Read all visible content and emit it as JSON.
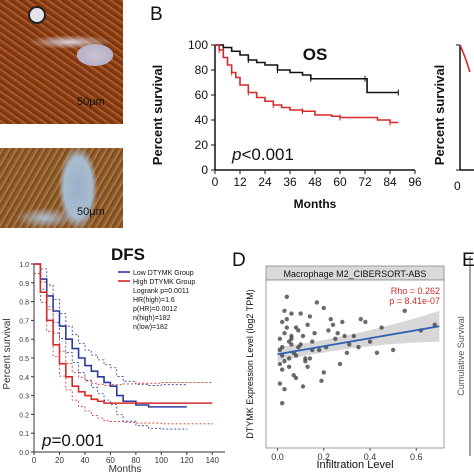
{
  "images": {
    "scale_a": "50μm",
    "scale_b": "50μm"
  },
  "labels": {
    "B": "B",
    "D": "D",
    "E": "E"
  },
  "chart_data": [
    {
      "type": "line",
      "title": "OS",
      "xlabel": "Months",
      "ylabel": "Percent survival",
      "xlim": [
        0,
        96
      ],
      "ylim": [
        0,
        100
      ],
      "xticks": [
        "0",
        "12",
        "24",
        "36",
        "48",
        "60",
        "72",
        "84",
        "96"
      ],
      "yticks": [
        "0",
        "20",
        "40",
        "60",
        "80",
        "100"
      ],
      "annotation_p": "p",
      "annotation_val": "<0.001",
      "series": [
        {
          "color": "#111111",
          "x": [
            0,
            4,
            8,
            12,
            16,
            20,
            24,
            30,
            36,
            42,
            46,
            50,
            60,
            72,
            73,
            84,
            88
          ],
          "y": [
            100,
            98,
            95,
            92,
            88,
            86,
            84,
            80,
            78,
            76,
            73,
            73,
            73,
            73,
            62,
            62,
            62
          ]
        },
        {
          "color": "#d42a2a",
          "x": [
            0,
            2,
            4,
            6,
            8,
            10,
            12,
            16,
            20,
            24,
            28,
            32,
            36,
            42,
            48,
            56,
            60,
            72,
            78,
            84,
            88
          ],
          "y": [
            100,
            96,
            90,
            84,
            78,
            74,
            68,
            62,
            58,
            55,
            52,
            50,
            48,
            47,
            44,
            43,
            42,
            42,
            40,
            38,
            38
          ]
        }
      ]
    },
    {
      "type": "line",
      "title": "DFS",
      "xlabel": "Months",
      "ylabel": "Percent survival",
      "xlim": [
        0,
        150
      ],
      "ylim": [
        0,
        1
      ],
      "xticks": [
        "0",
        "20",
        "40",
        "60",
        "80",
        "100",
        "120",
        "140"
      ],
      "yticks": [
        "0.0",
        "0.1",
        "0.2",
        "0.3",
        "0.4",
        "0.5",
        "0.6",
        "0.7",
        "0.8",
        "0.9",
        "1.0"
      ],
      "annotation_p": "p",
      "annotation_val": "=0.001",
      "legend": [
        "Low DTYMK Group",
        "High DTYMK Group"
      ],
      "stats": [
        "Logrank p=0.0011",
        "HR(high)=1.6",
        "p(HR)=0.0012",
        "n(high)=182",
        "n(low)=182"
      ],
      "series": [
        {
          "name": "Low DTYMK Group",
          "color": "#2b3b9c",
          "x": [
            0,
            5,
            10,
            15,
            20,
            25,
            30,
            35,
            40,
            45,
            50,
            55,
            60,
            65,
            70,
            80,
            90,
            100,
            120
          ],
          "y": [
            1.0,
            0.92,
            0.83,
            0.75,
            0.67,
            0.6,
            0.55,
            0.5,
            0.46,
            0.43,
            0.4,
            0.37,
            0.35,
            0.3,
            0.27,
            0.25,
            0.24,
            0.24,
            0.24
          ]
        },
        {
          "name": "High DTYMK Group",
          "color": "#d42a2a",
          "x": [
            0,
            5,
            10,
            15,
            20,
            25,
            30,
            35,
            40,
            45,
            50,
            55,
            60,
            70,
            80,
            100,
            140
          ],
          "y": [
            1.0,
            0.85,
            0.7,
            0.57,
            0.47,
            0.4,
            0.35,
            0.32,
            0.3,
            0.28,
            0.27,
            0.26,
            0.26,
            0.26,
            0.26,
            0.26,
            0.26
          ]
        }
      ]
    },
    {
      "type": "scatter",
      "title": "Macrophage M2_CIBERSORT-ABS",
      "xlabel": "Infiltration Level",
      "ylabel": "DTYMK Expression Level (log2 TPM)",
      "xlim": [
        -0.05,
        0.72
      ],
      "ylim": [
        -1,
        5
      ],
      "xticks": [
        "0.0",
        "0.2",
        "0.4",
        "0.6"
      ],
      "rho": "Rho = 0.262",
      "p": "p = 8.41e-07",
      "fit": {
        "x": [
          0.0,
          0.7
        ],
        "y": [
          2.35,
          3.35
        ]
      },
      "x": [
        0.01,
        0.02,
        0.03,
        0.05,
        0.04,
        0.06,
        0.08,
        0.1,
        0.02,
        0.03,
        0.07,
        0.09,
        0.12,
        0.15,
        0.11,
        0.13,
        0.01,
        0.02,
        0.05,
        0.06,
        0.08,
        0.14,
        0.18,
        0.2,
        0.22,
        0.25,
        0.28,
        0.3,
        0.17,
        0.19,
        0.04,
        0.03,
        0.06,
        0.1,
        0.12,
        0.16,
        0.21,
        0.24,
        0.27,
        0.33,
        0.36,
        0.4,
        0.45,
        0.5,
        0.55,
        0.62,
        0.68,
        0.01,
        0.02,
        0.04,
        0.07,
        0.09,
        0.11,
        0.14,
        0.2,
        0.26,
        0.31,
        0.38,
        0.43,
        0.02,
        0.05,
        0.08,
        0.13,
        0.15,
        0.23,
        0.29,
        0.35,
        0.01,
        0.03,
        0.06
      ],
      "y": [
        2.5,
        1.8,
        3.1,
        2.2,
        3.6,
        2.9,
        1.5,
        2.7,
        0.6,
        3.9,
        2.4,
        3.2,
        2.1,
        2.8,
        1.2,
        3.4,
        2.0,
        2.6,
        1.9,
        3.0,
        2.3,
        3.7,
        2.5,
        1.7,
        3.2,
        2.9,
        3.5,
        2.4,
        4.2,
        1.4,
        4.4,
        1.1,
        2.7,
        3.8,
        2.2,
        3.1,
        2.6,
        3.4,
        2.0,
        3.0,
        3.6,
        2.8,
        3.3,
        2.5,
        3.9,
        3.2,
        3.4,
        2.9,
        2.3,
        3.3,
        1.6,
        2.6,
        3.0,
        2.2,
        4.0,
        3.1,
        2.7,
        3.5,
        2.4,
        3.5,
        2.8,
        3.3,
        1.9,
        2.5,
        3.6,
        3.0,
        2.6,
        1.3,
        2.1,
        3.8
      ]
    },
    {
      "type": "line",
      "ylabel": "Cumulative Survival",
      "series": [
        {
          "color": "#d42a2a",
          "x": [
            0,
            1,
            2
          ],
          "y": [
            100,
            90,
            80
          ]
        }
      ]
    }
  ]
}
